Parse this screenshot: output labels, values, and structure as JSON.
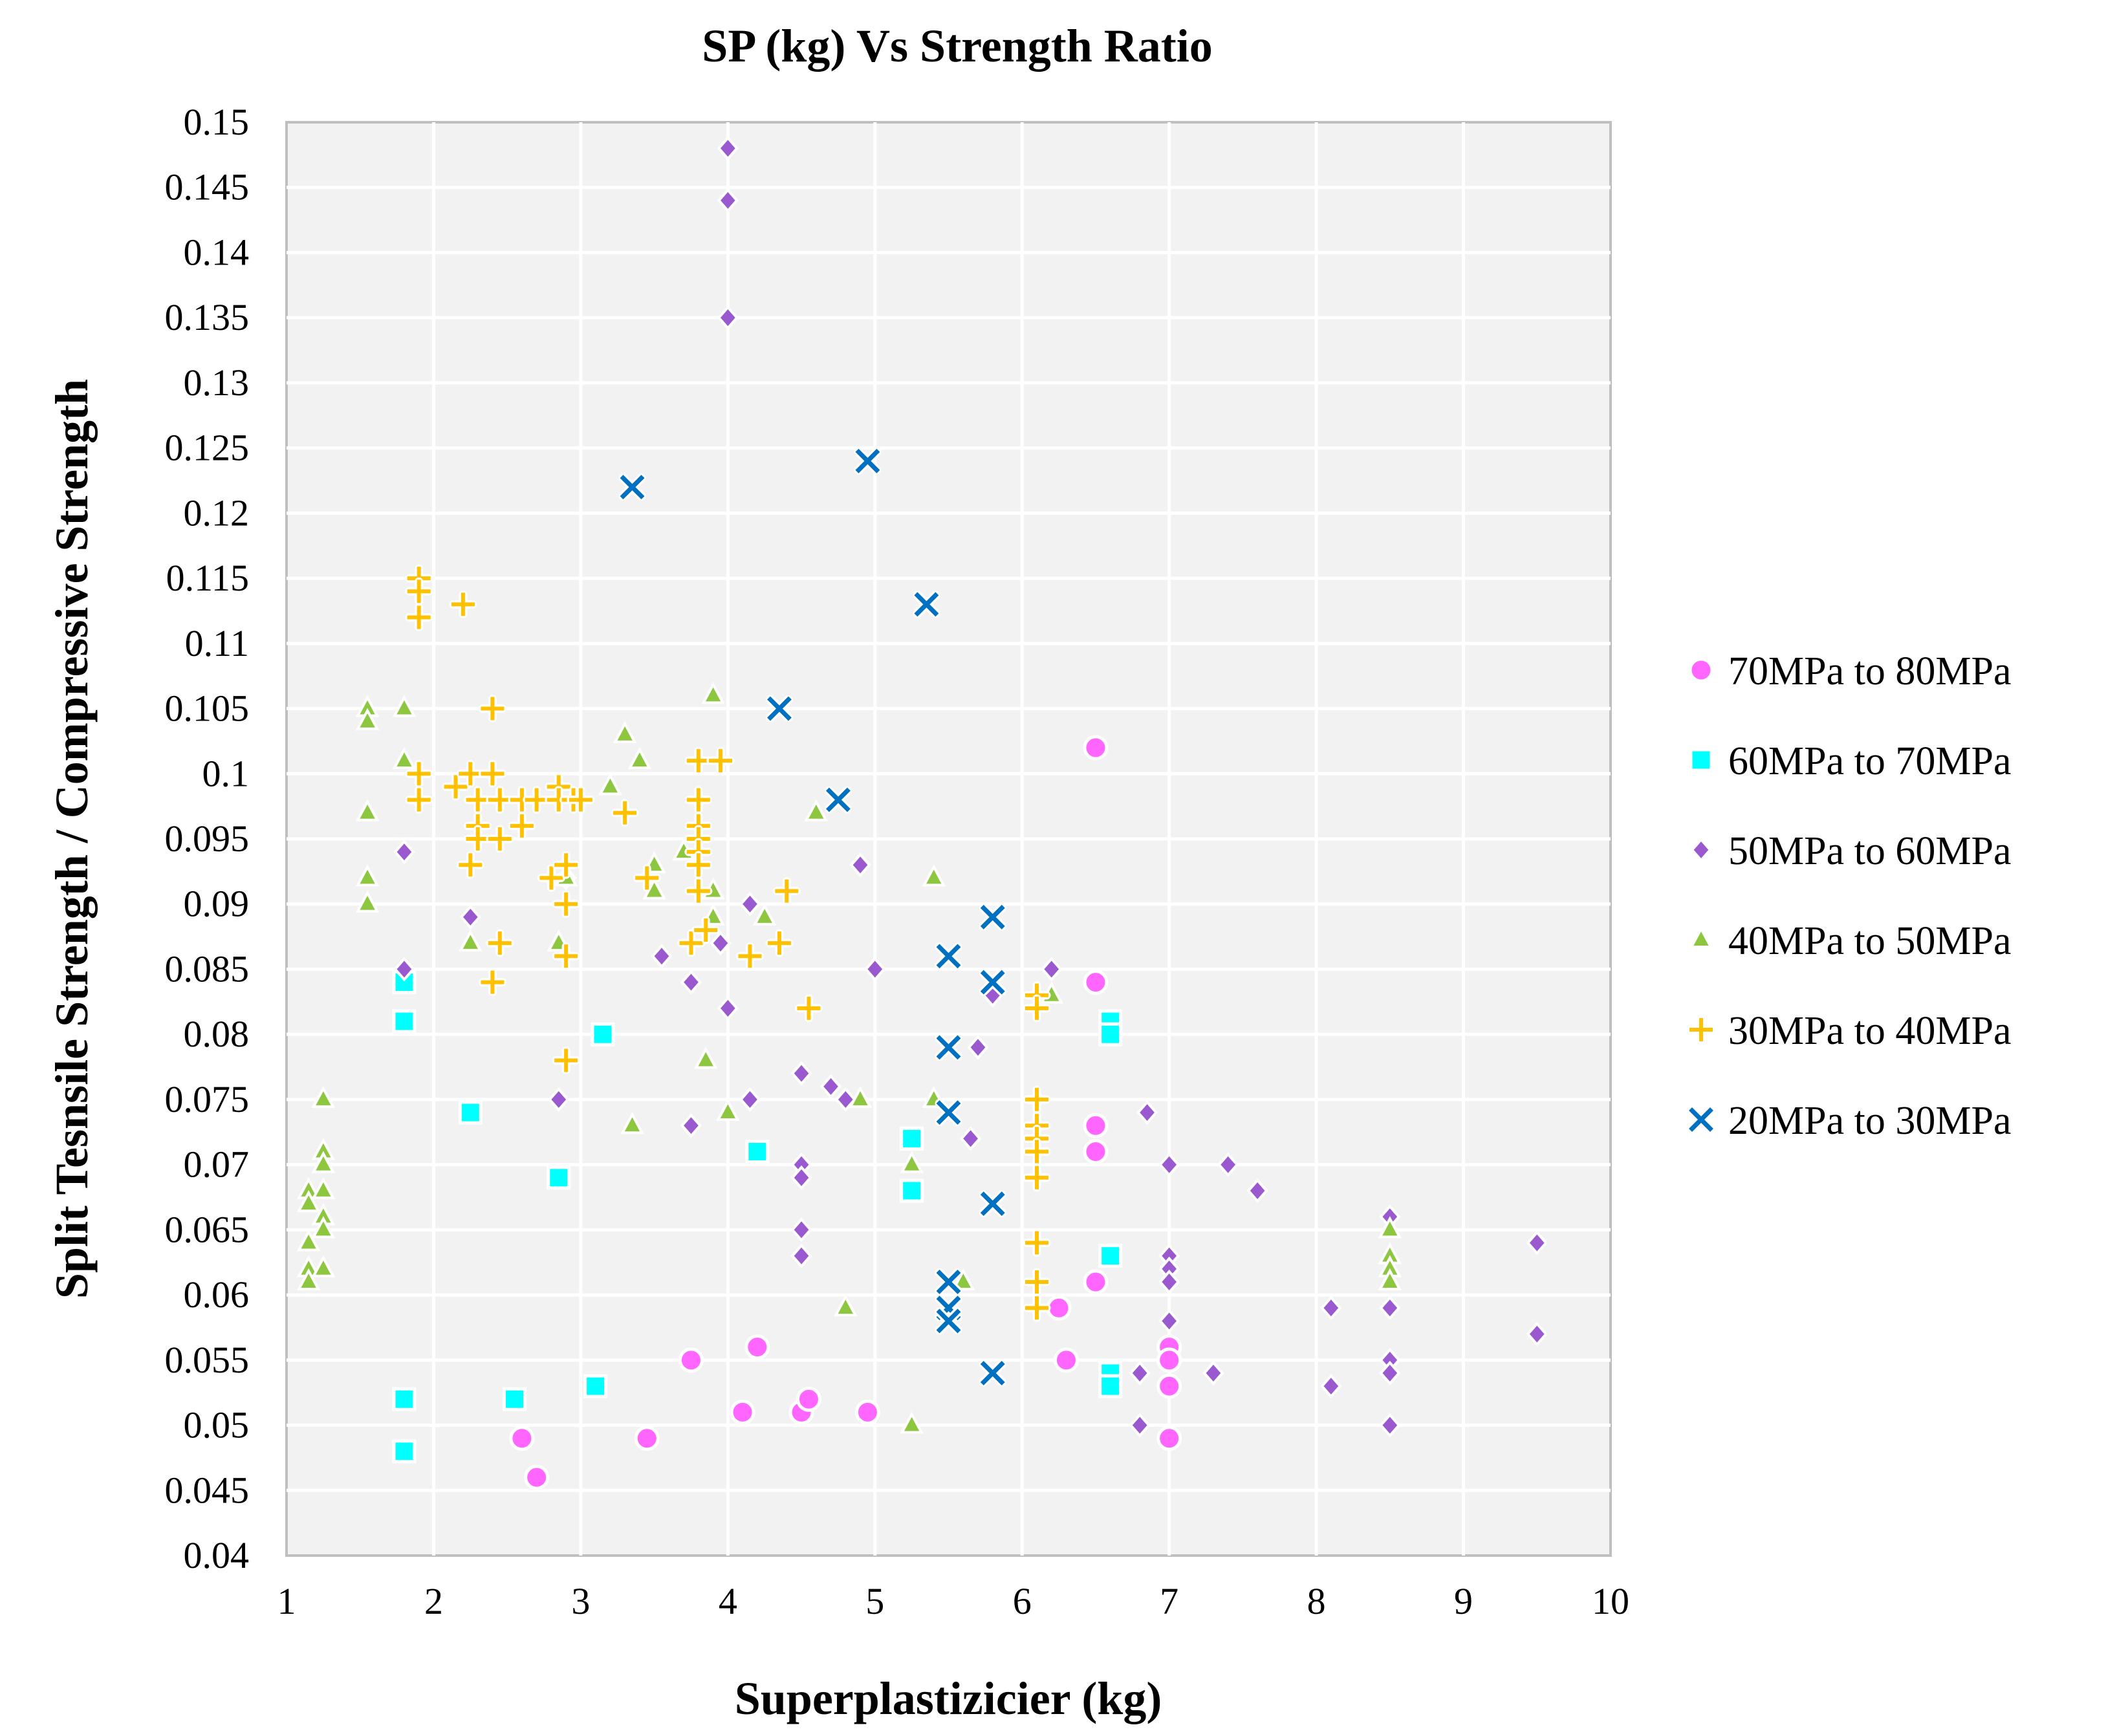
{
  "chart_data": {
    "type": "scatter",
    "title": "SP (kg) Vs Strength Ratio",
    "xlabel": "Superplastizicier (kg)",
    "ylabel": "Split Tesnsile Strength / Compressive Strength",
    "xlim": [
      1,
      10
    ],
    "ylim": [
      0.04,
      0.15
    ],
    "x_ticks": [
      "1",
      "2",
      "3",
      "4",
      "5",
      "6",
      "7",
      "8",
      "9",
      "10"
    ],
    "y_ticks": [
      "0.04",
      "0.045",
      "0.05",
      "0.055",
      "0.06",
      "0.065",
      "0.07",
      "0.075",
      "0.08",
      "0.085",
      "0.09",
      "0.095",
      "0.1",
      "0.105",
      "0.11",
      "0.115",
      "0.12",
      "0.125",
      "0.13",
      "0.135",
      "0.14",
      "0.145",
      "0.15"
    ],
    "grid": true,
    "legend_position": "right",
    "series": [
      {
        "name": "70MPa to 80MPa",
        "marker": "circle",
        "color": "#FF66FF",
        "points": [
          [
            2.6,
            0.049
          ],
          [
            2.7,
            0.046
          ],
          [
            3.45,
            0.049
          ],
          [
            3.75,
            0.055
          ],
          [
            4.1,
            0.051
          ],
          [
            4.2,
            0.056
          ],
          [
            4.5,
            0.051
          ],
          [
            4.55,
            0.052
          ],
          [
            4.95,
            0.051
          ],
          [
            6.25,
            0.059
          ],
          [
            6.3,
            0.055
          ],
          [
            6.5,
            0.102
          ],
          [
            6.5,
            0.084
          ],
          [
            6.5,
            0.073
          ],
          [
            6.5,
            0.071
          ],
          [
            6.5,
            0.061
          ],
          [
            7,
            0.056
          ],
          [
            7,
            0.055
          ],
          [
            7,
            0.053
          ],
          [
            7,
            0.049
          ]
        ]
      },
      {
        "name": "60MPa to 70MPa",
        "marker": "square",
        "color": "#00FFFF",
        "points": [
          [
            1.8,
            0.084
          ],
          [
            1.8,
            0.081
          ],
          [
            1.8,
            0.052
          ],
          [
            1.8,
            0.048
          ],
          [
            2.25,
            0.074
          ],
          [
            2.55,
            0.052
          ],
          [
            2.85,
            0.069
          ],
          [
            3.1,
            0.053
          ],
          [
            3.15,
            0.08
          ],
          [
            4.2,
            0.071
          ],
          [
            5.25,
            0.072
          ],
          [
            5.25,
            0.068
          ],
          [
            6.6,
            0.081
          ],
          [
            6.6,
            0.08
          ],
          [
            6.6,
            0.063
          ],
          [
            6.6,
            0.054
          ],
          [
            6.6,
            0.053
          ]
        ]
      },
      {
        "name": "50MPa to 60MPa",
        "marker": "diamond",
        "color": "#9B59D0",
        "points": [
          [
            1.8,
            0.094
          ],
          [
            1.8,
            0.085
          ],
          [
            2.25,
            0.089
          ],
          [
            2.85,
            0.075
          ],
          [
            2.9,
            0.092
          ],
          [
            3.55,
            0.086
          ],
          [
            3.75,
            0.084
          ],
          [
            3.75,
            0.073
          ],
          [
            3.95,
            0.087
          ],
          [
            4,
            0.148
          ],
          [
            4,
            0.144
          ],
          [
            4,
            0.135
          ],
          [
            4,
            0.082
          ],
          [
            4.15,
            0.09
          ],
          [
            4.15,
            0.075
          ],
          [
            4.5,
            0.077
          ],
          [
            4.5,
            0.07
          ],
          [
            4.5,
            0.069
          ],
          [
            4.5,
            0.065
          ],
          [
            4.5,
            0.063
          ],
          [
            4.7,
            0.076
          ],
          [
            4.8,
            0.075
          ],
          [
            4.9,
            0.093
          ],
          [
            5,
            0.085
          ],
          [
            5.65,
            0.072
          ],
          [
            5.7,
            0.079
          ],
          [
            5.8,
            0.083
          ],
          [
            6.2,
            0.085
          ],
          [
            6.8,
            0.054
          ],
          [
            6.8,
            0.05
          ],
          [
            6.85,
            0.074
          ],
          [
            7,
            0.07
          ],
          [
            7,
            0.063
          ],
          [
            7,
            0.062
          ],
          [
            7,
            0.061
          ],
          [
            7,
            0.058
          ],
          [
            7.3,
            0.054
          ],
          [
            7.4,
            0.07
          ],
          [
            7.6,
            0.068
          ],
          [
            8.1,
            0.059
          ],
          [
            8.1,
            0.053
          ],
          [
            8.5,
            0.066
          ],
          [
            8.5,
            0.059
          ],
          [
            8.5,
            0.055
          ],
          [
            8.5,
            0.054
          ],
          [
            8.5,
            0.05
          ],
          [
            9.5,
            0.064
          ],
          [
            9.5,
            0.057
          ]
        ]
      },
      {
        "name": "40MPa to 50MPa",
        "marker": "triangle",
        "color": "#8DC63F",
        "points": [
          [
            1.15,
            0.068
          ],
          [
            1.15,
            0.067
          ],
          [
            1.15,
            0.064
          ],
          [
            1.15,
            0.062
          ],
          [
            1.15,
            0.061
          ],
          [
            1.25,
            0.075
          ],
          [
            1.25,
            0.071
          ],
          [
            1.25,
            0.07
          ],
          [
            1.25,
            0.068
          ],
          [
            1.25,
            0.066
          ],
          [
            1.25,
            0.065
          ],
          [
            1.25,
            0.062
          ],
          [
            1.55,
            0.105
          ],
          [
            1.55,
            0.104
          ],
          [
            1.55,
            0.097
          ],
          [
            1.55,
            0.092
          ],
          [
            1.55,
            0.09
          ],
          [
            1.8,
            0.105
          ],
          [
            1.8,
            0.101
          ],
          [
            2.25,
            0.087
          ],
          [
            2.85,
            0.087
          ],
          [
            2.9,
            0.092
          ],
          [
            3.2,
            0.099
          ],
          [
            3.3,
            0.103
          ],
          [
            3.35,
            0.073
          ],
          [
            3.4,
            0.101
          ],
          [
            3.5,
            0.093
          ],
          [
            3.5,
            0.091
          ],
          [
            3.7,
            0.094
          ],
          [
            3.85,
            0.078
          ],
          [
            3.9,
            0.106
          ],
          [
            3.9,
            0.091
          ],
          [
            3.9,
            0.089
          ],
          [
            4,
            0.074
          ],
          [
            4.25,
            0.089
          ],
          [
            4.6,
            0.097
          ],
          [
            4.8,
            0.059
          ],
          [
            4.9,
            0.075
          ],
          [
            5.25,
            0.07
          ],
          [
            5.25,
            0.05
          ],
          [
            5.4,
            0.092
          ],
          [
            5.4,
            0.075
          ],
          [
            5.6,
            0.061
          ],
          [
            6.2,
            0.083
          ],
          [
            8.5,
            0.065
          ],
          [
            8.5,
            0.063
          ],
          [
            8.5,
            0.062
          ],
          [
            8.5,
            0.061
          ]
        ]
      },
      {
        "name": "30MPa to 40MPa",
        "marker": "plus",
        "color": "#FFC000",
        "points": [
          [
            1.9,
            0.115
          ],
          [
            1.9,
            0.114
          ],
          [
            1.9,
            0.112
          ],
          [
            1.9,
            0.1
          ],
          [
            1.9,
            0.098
          ],
          [
            2.15,
            0.099
          ],
          [
            2.2,
            0.113
          ],
          [
            2.25,
            0.1
          ],
          [
            2.25,
            0.093
          ],
          [
            2.3,
            0.098
          ],
          [
            2.3,
            0.096
          ],
          [
            2.3,
            0.095
          ],
          [
            2.4,
            0.105
          ],
          [
            2.4,
            0.1
          ],
          [
            2.4,
            0.084
          ],
          [
            2.45,
            0.098
          ],
          [
            2.45,
            0.095
          ],
          [
            2.45,
            0.087
          ],
          [
            2.6,
            0.098
          ],
          [
            2.6,
            0.096
          ],
          [
            2.7,
            0.098
          ],
          [
            2.8,
            0.092
          ],
          [
            2.85,
            0.099
          ],
          [
            2.85,
            0.098
          ],
          [
            2.9,
            0.093
          ],
          [
            2.9,
            0.09
          ],
          [
            2.9,
            0.086
          ],
          [
            2.9,
            0.078
          ],
          [
            2.95,
            0.098
          ],
          [
            3,
            0.098
          ],
          [
            3.3,
            0.097
          ],
          [
            3.45,
            0.092
          ],
          [
            3.75,
            0.087
          ],
          [
            3.8,
            0.101
          ],
          [
            3.8,
            0.098
          ],
          [
            3.8,
            0.096
          ],
          [
            3.8,
            0.095
          ],
          [
            3.8,
            0.094
          ],
          [
            3.8,
            0.093
          ],
          [
            3.8,
            0.091
          ],
          [
            3.85,
            0.088
          ],
          [
            3.95,
            0.101
          ],
          [
            4.15,
            0.086
          ],
          [
            4.35,
            0.087
          ],
          [
            4.4,
            0.091
          ],
          [
            4.55,
            0.082
          ],
          [
            6.1,
            0.083
          ],
          [
            6.1,
            0.082
          ],
          [
            6.1,
            0.075
          ],
          [
            6.1,
            0.073
          ],
          [
            6.1,
            0.072
          ],
          [
            6.1,
            0.071
          ],
          [
            6.1,
            0.069
          ],
          [
            6.1,
            0.064
          ],
          [
            6.1,
            0.061
          ],
          [
            6.1,
            0.059
          ]
        ]
      },
      {
        "name": "20MPa to 30MPa",
        "marker": "x",
        "color": "#0070C0",
        "points": [
          [
            3.35,
            0.122
          ],
          [
            4.35,
            0.105
          ],
          [
            4.75,
            0.098
          ],
          [
            4.95,
            0.124
          ],
          [
            5.35,
            0.113
          ],
          [
            5.5,
            0.086
          ],
          [
            5.5,
            0.079
          ],
          [
            5.5,
            0.074
          ],
          [
            5.5,
            0.061
          ],
          [
            5.5,
            0.059
          ],
          [
            5.5,
            0.058
          ],
          [
            5.8,
            0.089
          ],
          [
            5.8,
            0.084
          ],
          [
            5.8,
            0.067
          ],
          [
            5.8,
            0.054
          ]
        ]
      }
    ]
  }
}
